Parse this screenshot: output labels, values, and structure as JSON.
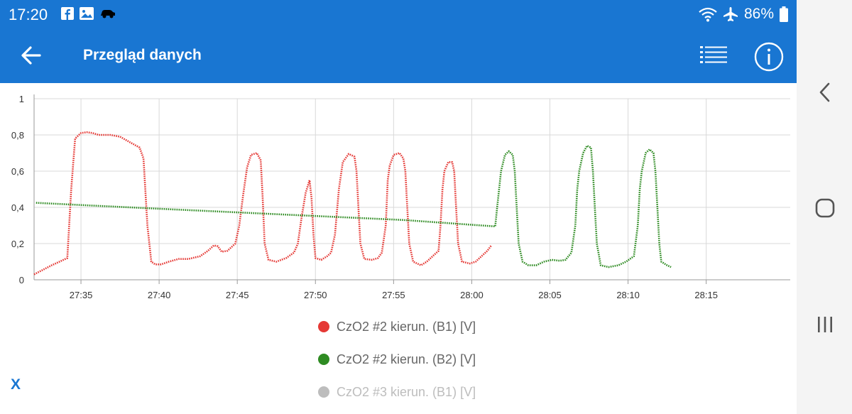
{
  "status_bar": {
    "time": "17:20",
    "battery_text": "86%",
    "icons": [
      "facebook-icon",
      "gallery-icon",
      "car-icon",
      "wifi-icon",
      "airplane-icon",
      "battery-icon"
    ]
  },
  "app_bar": {
    "title": "Przegląd danych",
    "icons": [
      "back-arrow-icon",
      "list-icon",
      "info-icon"
    ]
  },
  "nav_bar": {
    "icons": [
      "nav-back-icon",
      "nav-home-icon",
      "nav-recents-icon"
    ]
  },
  "colors": {
    "primary": "#1976d2",
    "series_red": "#e53935",
    "series_green": "#2e8b22",
    "series_gray": "#bdbdbd"
  },
  "chart_data": {
    "type": "line",
    "title": "",
    "xlabel": "",
    "ylabel": "",
    "ylim": [
      0,
      1
    ],
    "y_ticks": [
      0,
      0.2,
      0.4,
      0.6,
      0.8,
      1
    ],
    "y_tick_labels": [
      "0",
      "0,2",
      "0,4",
      "0,6",
      "0,8",
      "1"
    ],
    "x_unit": "seconds since 27:00",
    "xlim": [
      1631,
      2018
    ],
    "x_ticks": [
      1655,
      1695,
      1735,
      1775,
      1815,
      1855,
      1895,
      1935,
      1975
    ],
    "x_tick_labels": [
      "27:35",
      "27:40",
      "27:45",
      "27:50",
      "27:55",
      "28:00",
      "28:05",
      "28:10",
      "28:15"
    ],
    "grid": true,
    "legend_position": "bottom",
    "series": [
      {
        "name": "CzO2 #2 kierun. (B1) [V]",
        "color": "#e53935",
        "enabled": true,
        "points": [
          [
            1631,
            0.03
          ],
          [
            1640,
            0.08
          ],
          [
            1648,
            0.12
          ],
          [
            1650,
            0.5
          ],
          [
            1652,
            0.78
          ],
          [
            1655,
            0.81
          ],
          [
            1658,
            0.815
          ],
          [
            1661,
            0.81
          ],
          [
            1664,
            0.8
          ],
          [
            1670,
            0.8
          ],
          [
            1675,
            0.79
          ],
          [
            1680,
            0.76
          ],
          [
            1685,
            0.73
          ],
          [
            1687,
            0.67
          ],
          [
            1689,
            0.3
          ],
          [
            1691,
            0.1
          ],
          [
            1693,
            0.085
          ],
          [
            1696,
            0.085
          ],
          [
            1700,
            0.1
          ],
          [
            1705,
            0.115
          ],
          [
            1710,
            0.115
          ],
          [
            1716,
            0.13
          ],
          [
            1720,
            0.16
          ],
          [
            1723,
            0.19
          ],
          [
            1725,
            0.185
          ],
          [
            1727,
            0.155
          ],
          [
            1730,
            0.16
          ],
          [
            1734,
            0.2
          ],
          [
            1736,
            0.3
          ],
          [
            1738,
            0.47
          ],
          [
            1740,
            0.62
          ],
          [
            1742,
            0.69
          ],
          [
            1745,
            0.7
          ],
          [
            1747,
            0.66
          ],
          [
            1748,
            0.45
          ],
          [
            1749,
            0.2
          ],
          [
            1751,
            0.11
          ],
          [
            1755,
            0.1
          ],
          [
            1760,
            0.12
          ],
          [
            1764,
            0.15
          ],
          [
            1766,
            0.2
          ],
          [
            1768,
            0.35
          ],
          [
            1770,
            0.48
          ],
          [
            1772,
            0.55
          ],
          [
            1773,
            0.45
          ],
          [
            1774,
            0.25
          ],
          [
            1775,
            0.12
          ],
          [
            1778,
            0.11
          ],
          [
            1781,
            0.13
          ],
          [
            1783,
            0.15
          ],
          [
            1785,
            0.25
          ],
          [
            1787,
            0.5
          ],
          [
            1789,
            0.65
          ],
          [
            1792,
            0.695
          ],
          [
            1795,
            0.68
          ],
          [
            1796,
            0.6
          ],
          [
            1797,
            0.4
          ],
          [
            1798,
            0.2
          ],
          [
            1800,
            0.115
          ],
          [
            1804,
            0.11
          ],
          [
            1807,
            0.12
          ],
          [
            1809,
            0.15
          ],
          [
            1811,
            0.3
          ],
          [
            1812,
            0.55
          ],
          [
            1813,
            0.63
          ],
          [
            1815,
            0.69
          ],
          [
            1818,
            0.7
          ],
          [
            1820,
            0.67
          ],
          [
            1821,
            0.6
          ],
          [
            1822,
            0.4
          ],
          [
            1823,
            0.2
          ],
          [
            1825,
            0.1
          ],
          [
            1829,
            0.08
          ],
          [
            1832,
            0.1
          ],
          [
            1835,
            0.13
          ],
          [
            1838,
            0.16
          ],
          [
            1839,
            0.3
          ],
          [
            1840,
            0.5
          ],
          [
            1841,
            0.6
          ],
          [
            1843,
            0.65
          ],
          [
            1845,
            0.65
          ],
          [
            1846,
            0.6
          ],
          [
            1847,
            0.4
          ],
          [
            1848,
            0.2
          ],
          [
            1850,
            0.1
          ],
          [
            1854,
            0.09
          ],
          [
            1857,
            0.1
          ],
          [
            1860,
            0.13
          ],
          [
            1863,
            0.16
          ],
          [
            1865,
            0.19
          ]
        ]
      },
      {
        "name": "CzO2 #2 kierun. (B2) [V]",
        "color": "#2e8b22",
        "enabled": true,
        "points": [
          [
            1632,
            0.425
          ],
          [
            1660,
            0.41
          ],
          [
            1700,
            0.39
          ],
          [
            1740,
            0.37
          ],
          [
            1780,
            0.35
          ],
          [
            1820,
            0.33
          ],
          [
            1860,
            0.3
          ],
          [
            1867,
            0.295
          ],
          [
            1868,
            0.4
          ],
          [
            1870,
            0.6
          ],
          [
            1872,
            0.69
          ],
          [
            1874,
            0.71
          ],
          [
            1876,
            0.69
          ],
          [
            1877,
            0.6
          ],
          [
            1878,
            0.4
          ],
          [
            1879,
            0.2
          ],
          [
            1881,
            0.1
          ],
          [
            1884,
            0.08
          ],
          [
            1888,
            0.08
          ],
          [
            1892,
            0.1
          ],
          [
            1896,
            0.11
          ],
          [
            1900,
            0.105
          ],
          [
            1903,
            0.11
          ],
          [
            1906,
            0.15
          ],
          [
            1908,
            0.3
          ],
          [
            1909,
            0.5
          ],
          [
            1910,
            0.6
          ],
          [
            1912,
            0.7
          ],
          [
            1914,
            0.74
          ],
          [
            1916,
            0.73
          ],
          [
            1917,
            0.6
          ],
          [
            1918,
            0.4
          ],
          [
            1919,
            0.2
          ],
          [
            1921,
            0.08
          ],
          [
            1925,
            0.07
          ],
          [
            1930,
            0.08
          ],
          [
            1934,
            0.1
          ],
          [
            1938,
            0.13
          ],
          [
            1940,
            0.3
          ],
          [
            1941,
            0.5
          ],
          [
            1942,
            0.6
          ],
          [
            1944,
            0.7
          ],
          [
            1946,
            0.72
          ],
          [
            1948,
            0.7
          ],
          [
            1949,
            0.6
          ],
          [
            1950,
            0.4
          ],
          [
            1951,
            0.2
          ],
          [
            1952,
            0.1
          ],
          [
            1955,
            0.08
          ],
          [
            1957,
            0.07
          ]
        ]
      },
      {
        "name": "CzO2 #3 kierun. (B1) [V]",
        "color": "#bdbdbd",
        "enabled": false,
        "points": []
      }
    ]
  },
  "close_label": "X"
}
